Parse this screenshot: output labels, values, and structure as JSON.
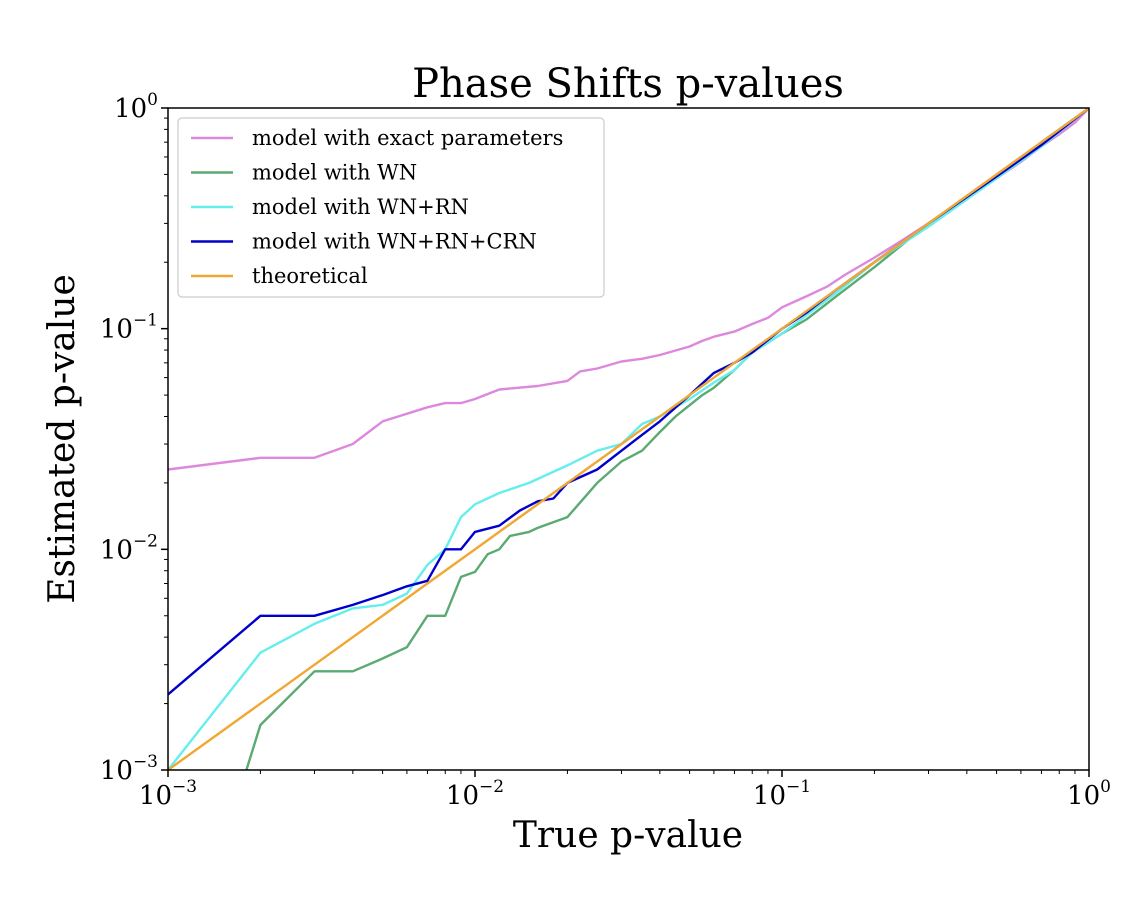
{
  "chart_data": {
    "type": "line",
    "title": "Phase Shifts p-values",
    "xlabel": "True p-value",
    "ylabel": "Estimated p-value",
    "xscale": "log",
    "yscale": "log",
    "xlim": [
      0.001,
      1
    ],
    "ylim": [
      0.001,
      1
    ],
    "grid": false,
    "legend_position": "upper left",
    "x_ticks": [
      {
        "base": "10",
        "exp": "−3",
        "value": 0.001
      },
      {
        "base": "10",
        "exp": "−2",
        "value": 0.01
      },
      {
        "base": "10",
        "exp": "−1",
        "value": 0.1
      },
      {
        "base": "10",
        "exp": "0",
        "value": 1
      }
    ],
    "y_ticks": [
      {
        "base": "10",
        "exp": "−3",
        "value": 0.001
      },
      {
        "base": "10",
        "exp": "−2",
        "value": 0.01
      },
      {
        "base": "10",
        "exp": "−1",
        "value": 0.1
      },
      {
        "base": "10",
        "exp": "0",
        "value": 1
      }
    ],
    "series": [
      {
        "name": "model with exact parameters",
        "color": "#dd88dd",
        "points": [
          [
            0.001,
            0.023
          ],
          [
            0.002,
            0.026
          ],
          [
            0.003,
            0.026
          ],
          [
            0.004,
            0.03
          ],
          [
            0.005,
            0.038
          ],
          [
            0.007,
            0.044
          ],
          [
            0.008,
            0.046
          ],
          [
            0.009,
            0.046
          ],
          [
            0.01,
            0.048
          ],
          [
            0.012,
            0.053
          ],
          [
            0.016,
            0.055
          ],
          [
            0.02,
            0.058
          ],
          [
            0.022,
            0.064
          ],
          [
            0.025,
            0.066
          ],
          [
            0.03,
            0.071
          ],
          [
            0.035,
            0.073
          ],
          [
            0.04,
            0.076
          ],
          [
            0.05,
            0.083
          ],
          [
            0.055,
            0.088
          ],
          [
            0.06,
            0.092
          ],
          [
            0.07,
            0.097
          ],
          [
            0.08,
            0.105
          ],
          [
            0.09,
            0.112
          ],
          [
            0.1,
            0.125
          ],
          [
            0.12,
            0.14
          ],
          [
            0.14,
            0.155
          ],
          [
            0.16,
            0.175
          ],
          [
            0.2,
            0.21
          ],
          [
            0.25,
            0.255
          ],
          [
            0.3,
            0.3
          ],
          [
            0.4,
            0.39
          ],
          [
            0.5,
            0.48
          ],
          [
            0.6,
            0.57
          ],
          [
            0.7,
            0.67
          ],
          [
            0.8,
            0.76
          ],
          [
            0.9,
            0.86
          ],
          [
            1,
            1
          ]
        ]
      },
      {
        "name": "model with WN",
        "color": "#5aaa72",
        "points": [
          [
            0.0018,
            0.001
          ],
          [
            0.002,
            0.0016
          ],
          [
            0.003,
            0.0028
          ],
          [
            0.004,
            0.0028
          ],
          [
            0.005,
            0.0032
          ],
          [
            0.006,
            0.0036
          ],
          [
            0.007,
            0.005
          ],
          [
            0.008,
            0.005
          ],
          [
            0.009,
            0.0075
          ],
          [
            0.01,
            0.0079
          ],
          [
            0.011,
            0.0095
          ],
          [
            0.012,
            0.01
          ],
          [
            0.013,
            0.0115
          ],
          [
            0.015,
            0.012
          ],
          [
            0.016,
            0.0125
          ],
          [
            0.02,
            0.014
          ],
          [
            0.025,
            0.02
          ],
          [
            0.03,
            0.025
          ],
          [
            0.035,
            0.028
          ],
          [
            0.04,
            0.034
          ],
          [
            0.045,
            0.04
          ],
          [
            0.05,
            0.045
          ],
          [
            0.055,
            0.05
          ],
          [
            0.06,
            0.054
          ],
          [
            0.07,
            0.065
          ],
          [
            0.08,
            0.078
          ],
          [
            0.1,
            0.095
          ],
          [
            0.12,
            0.11
          ],
          [
            0.15,
            0.14
          ],
          [
            0.2,
            0.19
          ],
          [
            0.3,
            0.3
          ],
          [
            0.5,
            0.48
          ],
          [
            0.7,
            0.7
          ],
          [
            1,
            1
          ]
        ]
      },
      {
        "name": "model with WN+RN",
        "color": "#66eeee",
        "points": [
          [
            0.001,
            0.001
          ],
          [
            0.002,
            0.0034
          ],
          [
            0.003,
            0.0046
          ],
          [
            0.004,
            0.0054
          ],
          [
            0.005,
            0.0056
          ],
          [
            0.006,
            0.0063
          ],
          [
            0.007,
            0.0085
          ],
          [
            0.008,
            0.01
          ],
          [
            0.009,
            0.014
          ],
          [
            0.01,
            0.016
          ],
          [
            0.012,
            0.018
          ],
          [
            0.015,
            0.02
          ],
          [
            0.02,
            0.024
          ],
          [
            0.025,
            0.028
          ],
          [
            0.03,
            0.03
          ],
          [
            0.035,
            0.037
          ],
          [
            0.04,
            0.04
          ],
          [
            0.05,
            0.048
          ],
          [
            0.06,
            0.057
          ],
          [
            0.07,
            0.065
          ],
          [
            0.08,
            0.078
          ],
          [
            0.1,
            0.095
          ],
          [
            0.12,
            0.115
          ],
          [
            0.15,
            0.145
          ],
          [
            0.2,
            0.2
          ],
          [
            0.3,
            0.29
          ],
          [
            0.5,
            0.48
          ],
          [
            0.7,
            0.67
          ],
          [
            1,
            1
          ]
        ]
      },
      {
        "name": "model with WN+RN+CRN",
        "color": "#0000cc",
        "points": [
          [
            0.001,
            0.0022
          ],
          [
            0.002,
            0.005
          ],
          [
            0.003,
            0.005
          ],
          [
            0.004,
            0.0056
          ],
          [
            0.005,
            0.0062
          ],
          [
            0.006,
            0.0068
          ],
          [
            0.007,
            0.0072
          ],
          [
            0.008,
            0.01
          ],
          [
            0.009,
            0.01
          ],
          [
            0.01,
            0.012
          ],
          [
            0.012,
            0.0128
          ],
          [
            0.014,
            0.015
          ],
          [
            0.016,
            0.0165
          ],
          [
            0.018,
            0.017
          ],
          [
            0.02,
            0.02
          ],
          [
            0.025,
            0.023
          ],
          [
            0.03,
            0.028
          ],
          [
            0.035,
            0.033
          ],
          [
            0.04,
            0.038
          ],
          [
            0.05,
            0.05
          ],
          [
            0.06,
            0.063
          ],
          [
            0.07,
            0.07
          ],
          [
            0.08,
            0.078
          ],
          [
            0.1,
            0.1
          ],
          [
            0.12,
            0.118
          ],
          [
            0.15,
            0.15
          ],
          [
            0.2,
            0.2
          ],
          [
            0.3,
            0.3
          ],
          [
            0.5,
            0.49
          ],
          [
            0.7,
            0.68
          ],
          [
            1,
            1
          ]
        ]
      },
      {
        "name": "theoretical",
        "color": "#f0a733",
        "points": [
          [
            0.001,
            0.001
          ],
          [
            1,
            1
          ]
        ]
      }
    ]
  }
}
